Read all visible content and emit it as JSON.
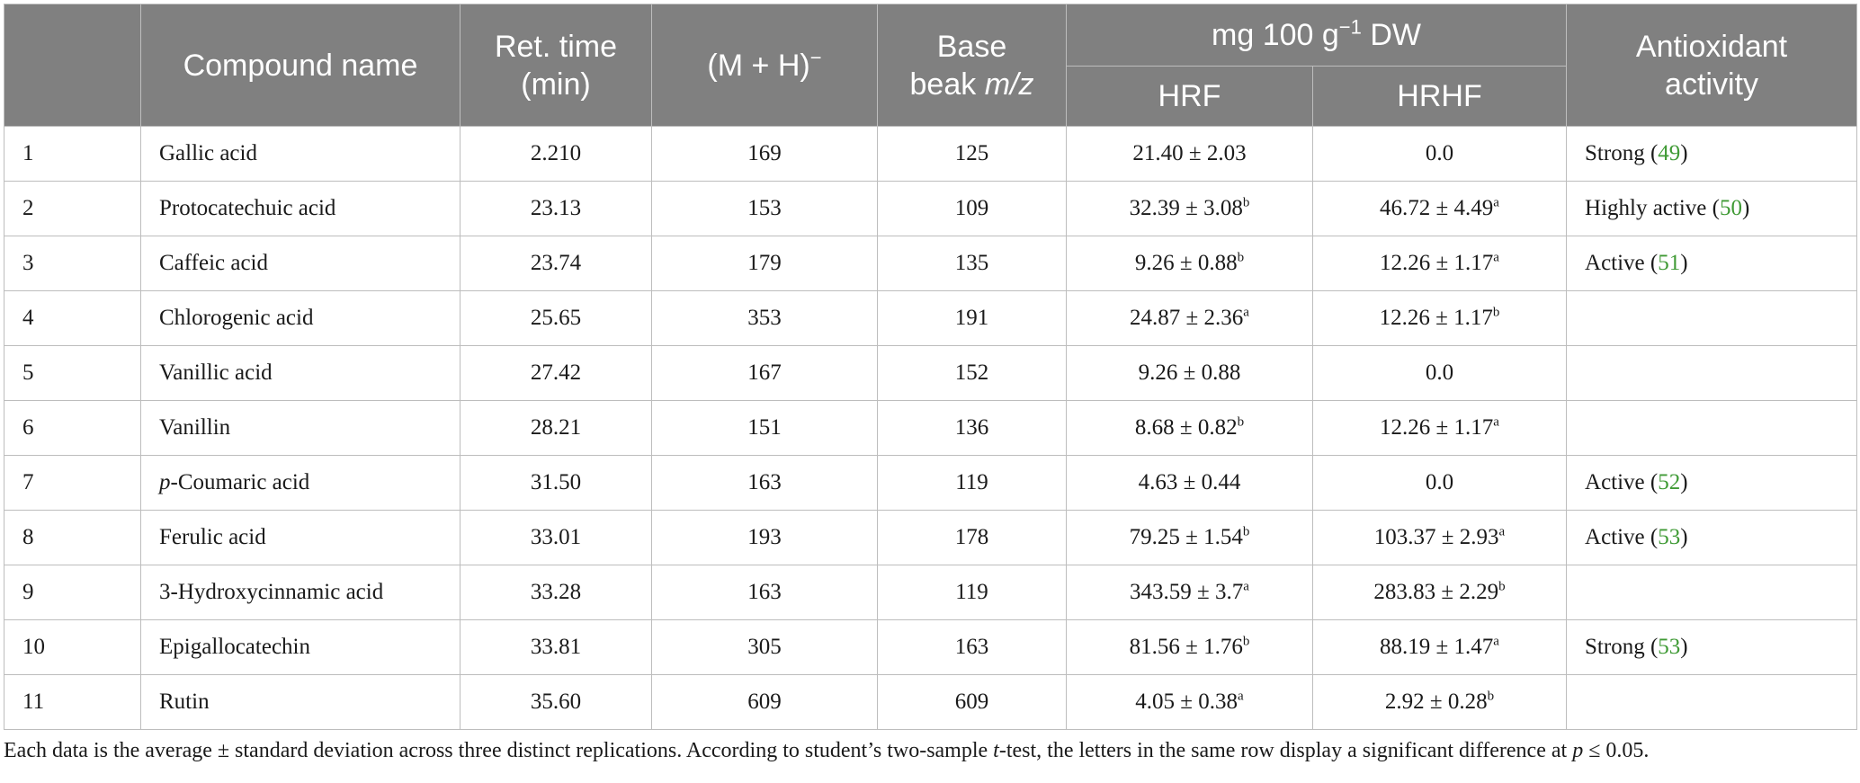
{
  "header": {
    "col0": "",
    "compound_name": "Compound name",
    "ret_time": "Ret. time",
    "ret_time_unit": "(min)",
    "mh": "(M + H)",
    "mh_sup": "−",
    "base_peak_1": "Base",
    "base_peak_2": "beak ",
    "base_peak_mz": "m/z",
    "mg_group": "mg 100 g",
    "mg_sup": "−1",
    "mg_suffix": " DW",
    "hrf": "HRF",
    "hrhf": "HRHF",
    "antiox_1": "Antioxidant",
    "antiox_2": "activity"
  },
  "rows": [
    {
      "no": "1",
      "name": "Gallic acid",
      "rt": "2.210",
      "mh": "169",
      "base": "125",
      "hrf": "21.40 ± 2.03",
      "hrf_sup": "",
      "hrhf": "0.0",
      "hrhf_sup": "",
      "act": "Strong (",
      "ref": "49",
      "act_end": ")"
    },
    {
      "no": "2",
      "name": "Protocatechuic acid",
      "rt": "23.13",
      "mh": "153",
      "base": "109",
      "hrf": "32.39 ± 3.08",
      "hrf_sup": "b",
      "hrhf": "46.72 ± 4.49",
      "hrhf_sup": "a",
      "act": "Highly active (",
      "ref": "50",
      "act_end": ")"
    },
    {
      "no": "3",
      "name": "Caffeic acid",
      "rt": "23.74",
      "mh": "179",
      "base": "135",
      "hrf": "9.26 ± 0.88",
      "hrf_sup": "b",
      "hrhf": "12.26 ± 1.17",
      "hrhf_sup": "a",
      "act": "Active (",
      "ref": "51",
      "act_end": ")"
    },
    {
      "no": "4",
      "name": "Chlorogenic acid",
      "rt": "25.65",
      "mh": "353",
      "base": "191",
      "hrf": "24.87 ± 2.36",
      "hrf_sup": "a",
      "hrhf": "12.26 ± 1.17",
      "hrhf_sup": "b",
      "act": "",
      "ref": "",
      "act_end": ""
    },
    {
      "no": "5",
      "name": "Vanillic acid",
      "rt": "27.42",
      "mh": "167",
      "base": "152",
      "hrf": "9.26 ± 0.88",
      "hrf_sup": "",
      "hrhf": "0.0",
      "hrhf_sup": "",
      "act": "",
      "ref": "",
      "act_end": ""
    },
    {
      "no": "6",
      "name": "Vanillin",
      "rt": "28.21",
      "mh": "151",
      "base": "136",
      "hrf": "8.68 ± 0.82",
      "hrf_sup": "b",
      "hrhf": "12.26 ± 1.17",
      "hrhf_sup": "a",
      "act": "",
      "ref": "",
      "act_end": ""
    },
    {
      "no": "7",
      "name_prefix": "p",
      "name": "-Coumaric acid",
      "rt": "31.50",
      "mh": "163",
      "base": "119",
      "hrf": "4.63 ± 0.44",
      "hrf_sup": "",
      "hrhf": "0.0",
      "hrhf_sup": "",
      "act": "Active (",
      "ref": "52",
      "act_end": ")"
    },
    {
      "no": "8",
      "name": "Ferulic acid",
      "rt": "33.01",
      "mh": "193",
      "base": "178",
      "hrf": "79.25 ± 1.54",
      "hrf_sup": "b",
      "hrhf": "103.37 ± 2.93",
      "hrhf_sup": "a",
      "act": "Active (",
      "ref": "53",
      "act_end": ")"
    },
    {
      "no": "9",
      "name": "3-Hydroxycinnamic acid",
      "rt": "33.28",
      "mh": "163",
      "base": "119",
      "hrf": "343.59 ± 3.7",
      "hrf_sup": "a",
      "hrhf": "283.83 ± 2.29",
      "hrhf_sup": "b",
      "act": "",
      "ref": "",
      "act_end": ""
    },
    {
      "no": "10",
      "name": "Epigallocatechin",
      "rt": "33.81",
      "mh": "305",
      "base": "163",
      "hrf": "81.56 ± 1.76",
      "hrf_sup": "b",
      "hrhf": "88.19 ± 1.47",
      "hrhf_sup": "a",
      "act": "Strong (",
      "ref": "53",
      "act_end": ")"
    },
    {
      "no": "11",
      "name": "Rutin",
      "rt": "35.60",
      "mh": "609",
      "base": "609",
      "hrf": "4.05 ± 0.38",
      "hrf_sup": "a",
      "hrhf": "2.92 ± 0.28",
      "hrhf_sup": "b",
      "act": "",
      "ref": "",
      "act_end": ""
    }
  ],
  "footnote": {
    "part1": "Each data is the average ± standard deviation across three distinct replications. According to student’s two-sample ",
    "t": "t",
    "part2": "-test, the letters in the same row display a significant difference at ",
    "p": "p",
    "part3": " ≤ 0.05."
  },
  "colors": {
    "header_bg": "#808080",
    "header_text": "#ffffff",
    "ref_link": "#3f9a35",
    "border": "#bdbdbd"
  }
}
